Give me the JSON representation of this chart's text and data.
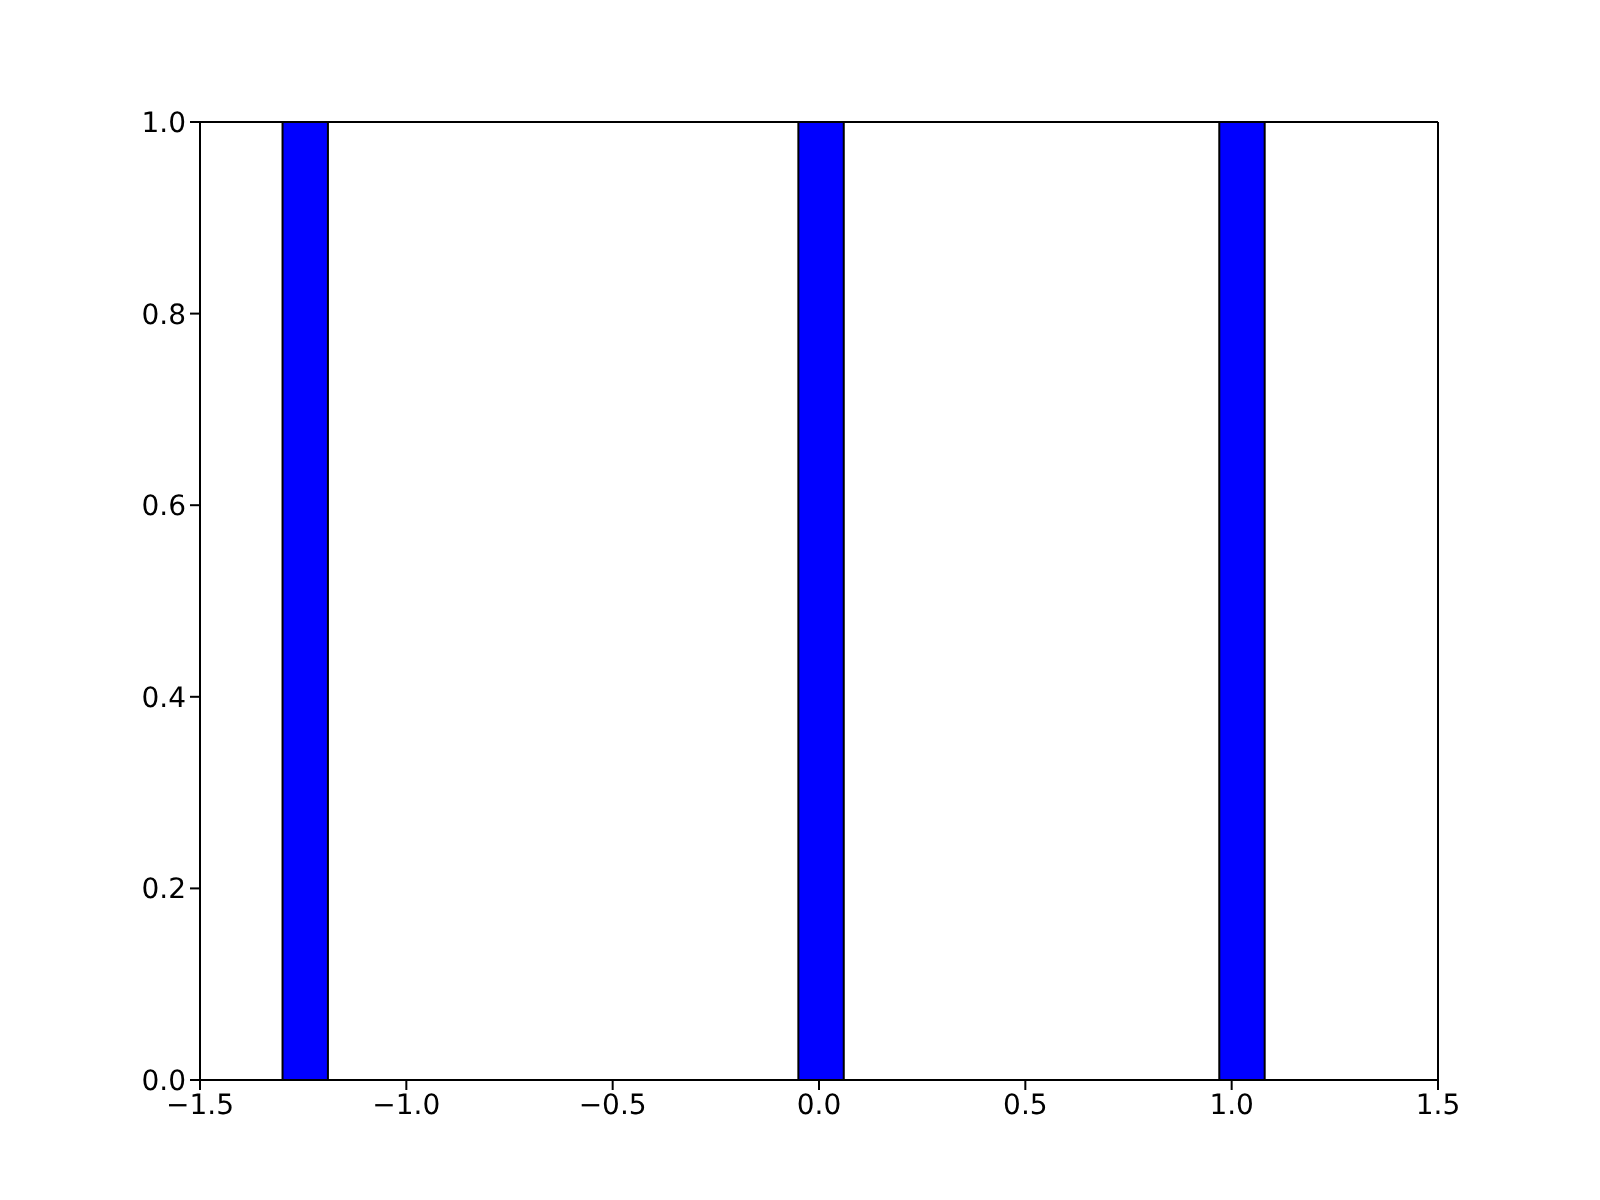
{
  "chart_data": {
    "type": "histogram",
    "bins": [
      -1.3,
      -1.19,
      -0.05,
      0.06,
      0.97,
      1.08
    ],
    "values": [
      1,
      0,
      1,
      0,
      1
    ],
    "color": "#0000ff",
    "xlim": [
      -1.5,
      1.5
    ],
    "xticks": [
      {
        "value": -1.5,
        "label": "−1.5"
      },
      {
        "value": -1.0,
        "label": "−1.0"
      },
      {
        "value": -0.5,
        "label": "−0.5"
      },
      {
        "value": 0,
        "label": "0.0"
      },
      {
        "value": 0.5,
        "label": "0.5"
      },
      {
        "value": 1.0,
        "label": "1.0"
      },
      {
        "value": 1.5,
        "label": "1.5"
      }
    ],
    "ylim": [
      0,
      1
    ],
    "yticks": [
      {
        "value": 0,
        "label": "0.0"
      },
      {
        "value": 0.2,
        "label": "0.2"
      },
      {
        "value": 0.4,
        "label": "0.4"
      },
      {
        "value": 0.6,
        "label": "0.6"
      },
      {
        "value": 0.8,
        "label": "0.8"
      },
      {
        "value": 1,
        "label": "1.0"
      }
    ],
    "grid": false
  }
}
